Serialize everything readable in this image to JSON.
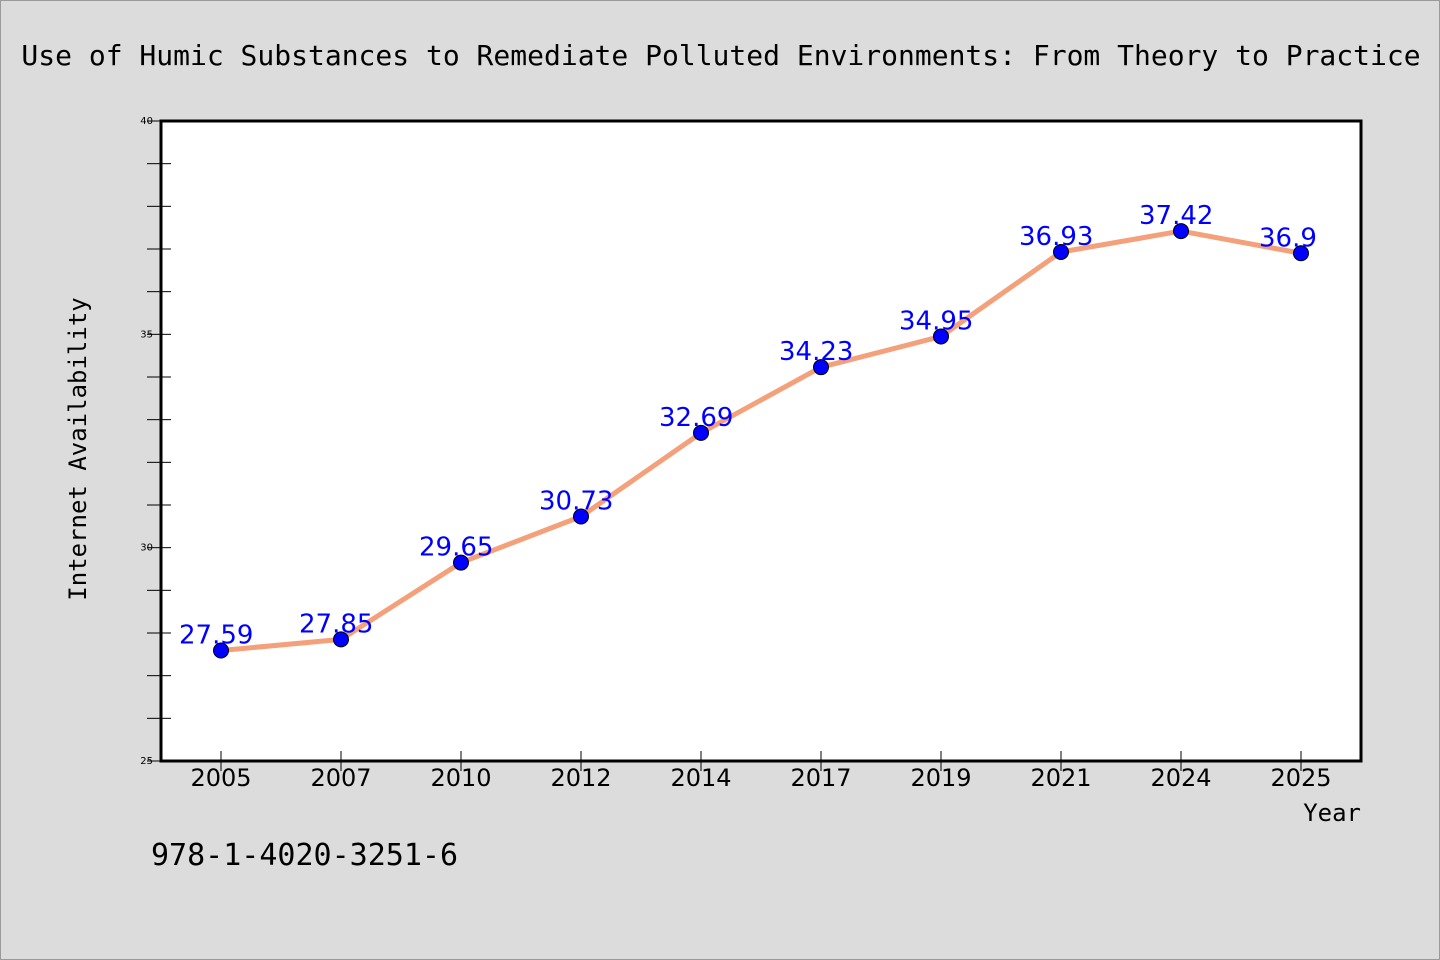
{
  "chart_data": {
    "type": "line",
    "title": "Use of Humic Substances to Remediate Polluted Environments: From Theory to Practice",
    "xlabel": "Year",
    "ylabel": "Internet Availability",
    "categories": [
      "2005",
      "2007",
      "2010",
      "2012",
      "2014",
      "2017",
      "2019",
      "2021",
      "2024",
      "2025"
    ],
    "series": [
      {
        "values": [
          27.59,
          27.85,
          29.65,
          30.73,
          32.69,
          34.23,
          34.95,
          36.93,
          37.42,
          36.9
        ]
      }
    ],
    "data_labels": [
      "27.59",
      "27.85",
      "29.65",
      "30.73",
      "32.69",
      "34.23",
      "34.95",
      "36.93",
      "37.42",
      "36.9"
    ],
    "ylim": [
      25,
      40
    ],
    "y_major_ticks": [
      25,
      30,
      35,
      40
    ],
    "y_minor_step": 1,
    "grid": false,
    "legend": "none",
    "colors": {
      "line": "#f4a07a",
      "marker": "#0000ff",
      "data_label": "#0000ff",
      "background": "#dcdcdc",
      "plot_background": "#ffffff"
    }
  },
  "footer": {
    "isbn": "978-1-4020-3251-6"
  }
}
